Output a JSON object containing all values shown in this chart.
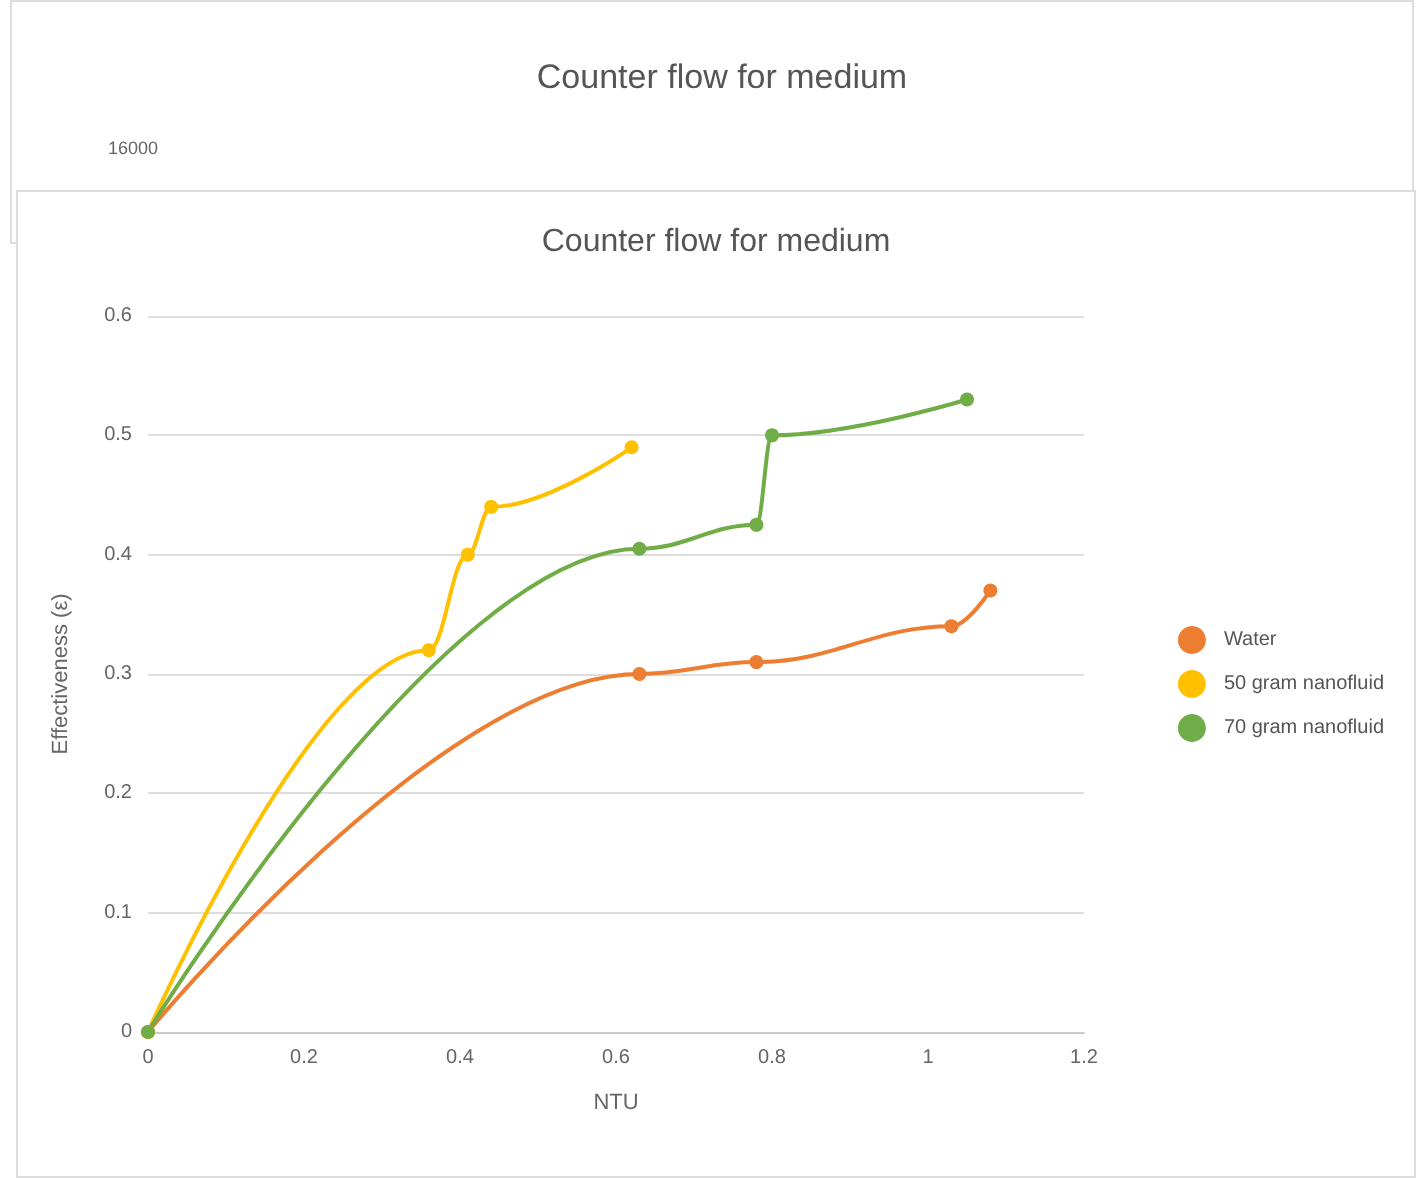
{
  "chart_data": {
    "type": "line",
    "title": "Counter flow for medium",
    "xlabel": "NTU",
    "ylabel": "Effectiveness (ε)",
    "annotations": [
      "Counter flow for medium",
      "16000"
    ],
    "xlim": [
      0,
      1.2
    ],
    "xticks": [
      0,
      0.2,
      0.4,
      0.6,
      0.8,
      1,
      1.2
    ],
    "ylim": [
      0,
      0.6
    ],
    "yticks": [
      0,
      0.1,
      0.2,
      0.3,
      0.4,
      0.5,
      0.6
    ],
    "grid": "y",
    "legend": "right",
    "marker": "circle",
    "line_style": "solid",
    "series": [
      {
        "name": "Water",
        "color": "#ed7d31",
        "x": [
          0,
          0.63,
          0.78,
          1.03,
          1.08
        ],
        "values": [
          0,
          0.3,
          0.31,
          0.34,
          0.37
        ]
      },
      {
        "name": "50 gram nanofluid",
        "color": "#ffc000",
        "x": [
          0,
          0.36,
          0.41,
          0.44,
          0.62
        ],
        "values": [
          0,
          0.32,
          0.4,
          0.44,
          0.49
        ]
      },
      {
        "name": "70 gram nanofluid",
        "color": "#70ad47",
        "x": [
          0,
          0.63,
          0.78,
          0.8,
          1.05
        ],
        "values": [
          0,
          0.405,
          0.425,
          0.5,
          0.53
        ]
      }
    ]
  }
}
